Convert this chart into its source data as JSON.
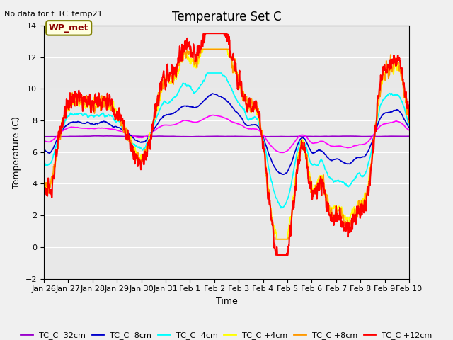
{
  "title": "Temperature Set C",
  "subtitle": "No data for f_TC_temp21",
  "xlabel": "Time",
  "ylabel": "Temperature (C)",
  "ylim": [
    -2,
    14
  ],
  "yticks": [
    -2,
    0,
    2,
    4,
    6,
    8,
    10,
    12,
    14
  ],
  "date_labels": [
    "Jan 26",
    "Jan 27",
    "Jan 28",
    "Jan 29",
    "Jan 30",
    "Jan 31",
    "Feb 1",
    "Feb 2",
    "Feb 3",
    "Feb 4",
    "Feb 5",
    "Feb 6",
    "Feb 7",
    "Feb 8",
    "Feb 9",
    "Feb 10"
  ],
  "legend_label": "WP_met",
  "series_colors": {
    "TC_C -32cm": "#9900cc",
    "TC_C -16cm": "#ff00ff",
    "TC_C -8cm": "#0000cc",
    "TC_C -4cm": "#00ffff",
    "TC_C +4cm": "#ffff00",
    "TC_C +8cm": "#ff9900",
    "TC_C +12cm": "#ff0000"
  },
  "bg_color": "#e8e8e8",
  "grid_color": "#ffffff",
  "fig_bg": "#f0f0f0"
}
